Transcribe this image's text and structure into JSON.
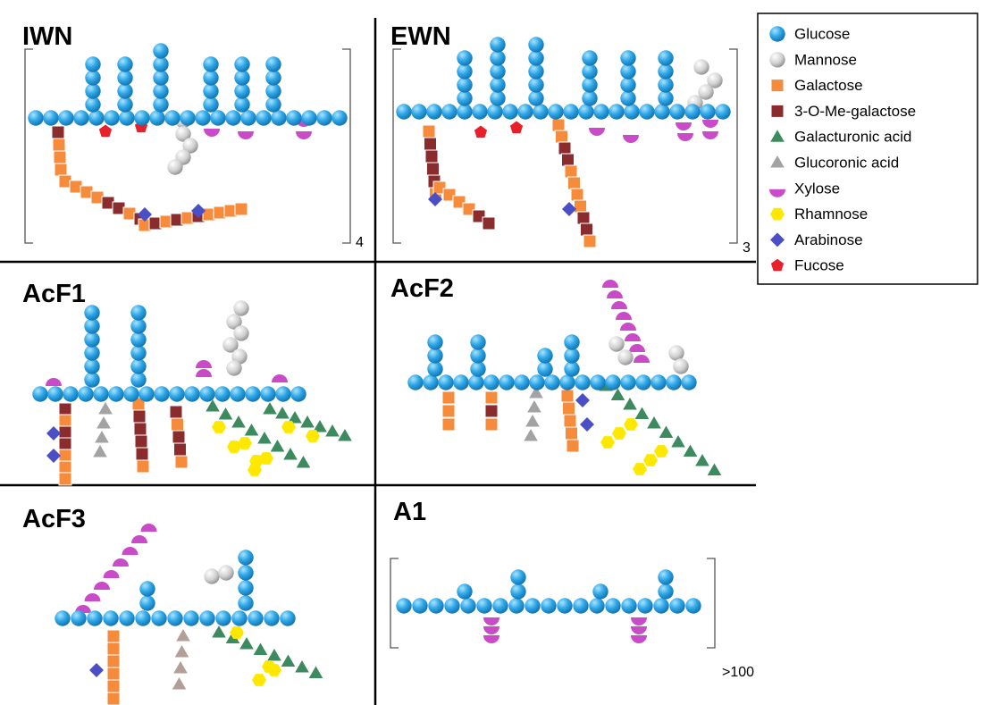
{
  "panels": [
    {
      "label": "IWN",
      "subscript": "4"
    },
    {
      "label": "EWN",
      "subscript": "3"
    },
    {
      "label": "AcF1"
    },
    {
      "label": "AcF2"
    },
    {
      "label": "AcF3"
    },
    {
      "label": "A1",
      "subscript": ">100"
    }
  ],
  "legend": [
    "Glucose",
    "Mannose",
    "Galactose",
    "3-O-Me-galactose",
    "Galacturonic acid",
    "Glucoronic acid",
    "Xylose",
    "Rhamnose",
    "Arabinose",
    "Fucose"
  ]
}
